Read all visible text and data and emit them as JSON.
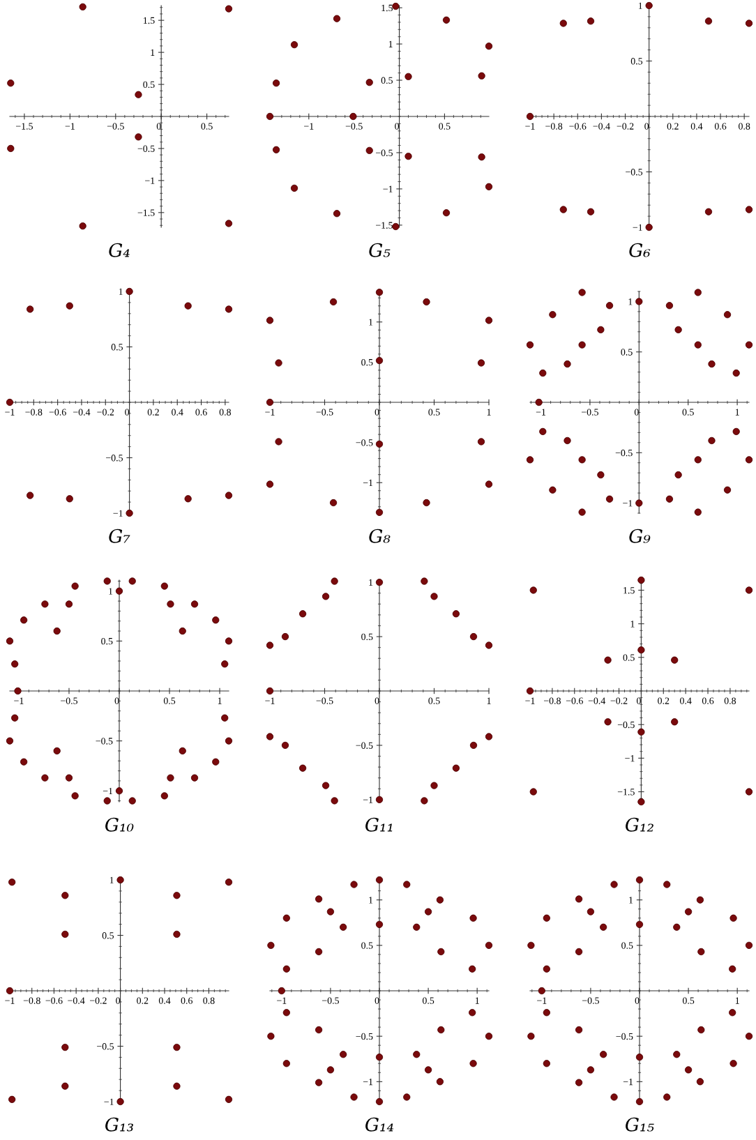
{
  "chart_data": [
    {
      "type": "scatter",
      "title": "G₄",
      "marker": "circle",
      "xlim": [
        -1.66,
        0.74
      ],
      "ylim": [
        -1.73,
        1.73
      ],
      "xticks": [
        -1.5,
        -1,
        -0.5,
        0,
        0.5
      ],
      "yticks": [
        -1.5,
        -1,
        -0.5,
        0.5,
        1,
        1.5
      ],
      "series": [
        {
          "color": "#7a0a0c",
          "x": [
            -0.86,
            0.74,
            -1.65,
            -0.25,
            -1.65,
            -0.25,
            -0.86,
            0.74
          ],
          "values": [
            1.71,
            1.68,
            0.52,
            0.34,
            -0.5,
            -0.32,
            -1.71,
            -1.67
          ]
        }
      ]
    },
    {
      "type": "scatter",
      "title": "G₅",
      "marker": "circle",
      "xlim": [
        -1.43,
        0.99
      ],
      "ylim": [
        -1.53,
        1.53
      ],
      "xticks": [
        -1,
        -0.5,
        0,
        0.5
      ],
      "yticks": [
        -1.5,
        -1,
        -0.5,
        0.5,
        1,
        1.5
      ],
      "series": [
        {
          "color": "#7a0a0c",
          "x": [
            -0.04,
            0.52,
            0.99,
            0.1,
            0.91,
            0.1,
            0.91,
            0.99,
            0.52,
            -0.04,
            -0.69,
            -1.16,
            -1.36,
            -0.33,
            -1.43,
            -0.51,
            -1.36,
            -0.33,
            -1.16,
            -0.69
          ],
          "values": [
            1.52,
            1.33,
            0.97,
            0.55,
            0.56,
            -0.55,
            -0.56,
            -0.97,
            -1.33,
            -1.52,
            1.35,
            0.99,
            0.46,
            0.47,
            0,
            0,
            -0.46,
            -0.47,
            -0.99,
            -1.34
          ]
        }
      ]
    },
    {
      "type": "scatter",
      "title": "G₆",
      "marker": "circle",
      "xlim": [
        -1,
        0.84
      ],
      "ylim": [
        -1,
        1
      ],
      "xticks": [
        -1,
        -0.8,
        -0.6,
        -0.4,
        -0.2,
        0,
        0.2,
        0.4,
        0.6,
        0.8
      ],
      "yticks": [
        -1,
        -0.5,
        0.5,
        1
      ],
      "series": [
        {
          "color": "#7a0a0c",
          "x": [
            -1,
            -0.72,
            -0.49,
            0,
            0.5,
            0.84,
            -0.72,
            -0.49,
            0,
            0.5,
            0.84
          ],
          "values": [
            0,
            0.84,
            0.86,
            1,
            0.86,
            0.84,
            -0.84,
            -0.86,
            -1,
            -0.86,
            -0.84
          ]
        }
      ]
    },
    {
      "type": "scatter",
      "title": "G₇",
      "marker": "circle",
      "xlim": [
        -1,
        0.83
      ],
      "ylim": [
        -1,
        1
      ],
      "xticks": [
        -1,
        -0.8,
        -0.6,
        -0.4,
        -0.2,
        0,
        0.2,
        0.4,
        0.6,
        0.8
      ],
      "yticks": [
        -1,
        -0.5,
        0.5,
        1
      ],
      "series": [
        {
          "color": "#7a0a0c",
          "x": [
            -1,
            -0.83,
            -0.5,
            0,
            0.49,
            0.83,
            -0.83,
            -0.5,
            0,
            0.49,
            0.83
          ],
          "values": [
            0,
            0.84,
            0.87,
            1,
            0.87,
            0.84,
            -0.84,
            -0.87,
            -1,
            -0.87,
            -0.84
          ]
        }
      ]
    },
    {
      "type": "scatter",
      "title": "G₈",
      "marker": "circle",
      "xlim": [
        -1,
        1
      ],
      "ylim": [
        -1.38,
        1.38
      ],
      "xticks": [
        -1,
        -0.5,
        0,
        0.5,
        1
      ],
      "yticks": [
        -1,
        -0.5,
        0.5,
        1
      ],
      "series": [
        {
          "color": "#7a0a0c",
          "x": [
            -1,
            -0.92,
            -1,
            -0.92,
            -1,
            -0.42,
            -0.42,
            0,
            0,
            0,
            0,
            0.43,
            0.43,
            0.93,
            0.93,
            1,
            1
          ],
          "values": [
            1.02,
            0.49,
            0,
            -0.49,
            -1.02,
            1.25,
            -1.25,
            1.37,
            0.52,
            -0.52,
            -1.37,
            1.25,
            -1.25,
            0.49,
            -0.49,
            1.02,
            -1.02
          ]
        }
      ]
    },
    {
      "type": "scatter",
      "title": "G₉",
      "marker": "circle",
      "xlim": [
        -1.11,
        1.12
      ],
      "ylim": [
        -1.1,
        1.1
      ],
      "xticks": [
        -1,
        -0.5,
        0,
        0.5,
        1
      ],
      "yticks": [
        -1,
        -0.5,
        0.5,
        1
      ],
      "series": [
        {
          "color": "#7a0a0c",
          "x": [
            -1.11,
            -0.98,
            -0.88,
            -0.58,
            -0.73,
            -0.58,
            -0.39,
            -0.3,
            0,
            0.31,
            0.4,
            0.6,
            0.6,
            0.74,
            0.9,
            0.99,
            1.12,
            -1.02,
            -1.11,
            -0.98,
            -0.88,
            -0.58,
            -0.73,
            -0.58,
            -0.39,
            -0.3,
            0,
            0.31,
            0.4,
            0.6,
            0.6,
            0.74,
            0.9,
            0.99,
            1.12
          ],
          "values": [
            0.57,
            0.29,
            0.87,
            1.09,
            0.38,
            0.57,
            0.72,
            0.96,
            1,
            0.96,
            0.72,
            1.09,
            0.57,
            0.38,
            0.87,
            0.29,
            0.57,
            0,
            -0.57,
            -0.29,
            -0.87,
            -1.09,
            -0.38,
            -0.57,
            -0.72,
            -0.96,
            -1,
            -0.96,
            -0.72,
            -1.09,
            -0.57,
            -0.38,
            -0.87,
            -0.29,
            -0.57
          ]
        }
      ]
    },
    {
      "type": "scatter",
      "title": "G₁₀",
      "marker": "circle",
      "xlim": [
        -1.09,
        1.09
      ],
      "ylim": [
        -1.11,
        1.11
      ],
      "xticks": [
        -1,
        -0.5,
        0,
        0.5,
        1
      ],
      "yticks": [
        -1,
        -0.5,
        0.5,
        1
      ],
      "series": [
        {
          "color": "#7a0a0c",
          "x": [
            -1.09,
            -1.04,
            -0.95,
            -0.74,
            -0.62,
            -0.5,
            -0.44,
            -0.12,
            0,
            0.13,
            0.45,
            0.51,
            0.63,
            0.75,
            0.96,
            1.05,
            1.09,
            -1.01,
            -1.09,
            -1.04,
            -0.95,
            -0.74,
            -0.62,
            -0.5,
            -0.44,
            -0.12,
            0,
            0.13,
            0.45,
            0.51,
            0.63,
            0.75,
            0.96,
            1.05,
            1.09
          ],
          "values": [
            0.5,
            0.27,
            0.71,
            0.87,
            0.6,
            0.87,
            1.05,
            1.1,
            1,
            1.1,
            1.05,
            0.87,
            0.6,
            0.87,
            0.71,
            0.27,
            0.5,
            0,
            -0.5,
            -0.27,
            -0.71,
            -0.87,
            -0.6,
            -0.87,
            -1.05,
            -1.1,
            -1,
            -1.1,
            -1.05,
            -0.87,
            -0.6,
            -0.87,
            -0.71,
            -0.27,
            -0.5
          ]
        }
      ]
    },
    {
      "type": "scatter",
      "title": "G₁₁",
      "marker": "circle",
      "xlim": [
        -1,
        1
      ],
      "ylim": [
        -1.02,
        1.02
      ],
      "xticks": [
        -1,
        -0.5,
        0,
        0.5,
        1
      ],
      "yticks": [
        -1,
        -0.5,
        0.5,
        1
      ],
      "series": [
        {
          "color": "#7a0a0c",
          "x": [
            -1,
            -0.86,
            -0.7,
            -0.49,
            -0.41,
            0,
            0.41,
            0.5,
            0.7,
            0.86,
            1,
            -1,
            -1,
            -0.86,
            -0.7,
            -0.49,
            -0.41,
            0,
            0.41,
            0.5,
            0.7,
            0.86,
            1
          ],
          "values": [
            0.42,
            0.5,
            0.71,
            0.87,
            1.01,
            1,
            1.01,
            0.87,
            0.71,
            0.5,
            0.42,
            0,
            -0.42,
            -0.5,
            -0.71,
            -0.87,
            -1.01,
            -1,
            -1.01,
            -0.87,
            -0.71,
            -0.5,
            -0.42
          ]
        }
      ]
    },
    {
      "type": "scatter",
      "title": "G₁₂",
      "marker": "circle",
      "xlim": [
        -1,
        0.97
      ],
      "ylim": [
        -1.65,
        1.65
      ],
      "xticks": [
        -1,
        -0.8,
        -0.6,
        -0.4,
        -0.2,
        0,
        0.2,
        0.4,
        0.6,
        0.8
      ],
      "yticks": [
        -1.5,
        -1,
        -0.5,
        0.5,
        1,
        1.5
      ],
      "series": [
        {
          "color": "#7a0a0c",
          "x": [
            -1,
            -0.97,
            -0.97,
            -0.3,
            -0.3,
            0,
            0,
            0,
            0,
            0.3,
            0.3,
            0.97,
            0.97
          ],
          "values": [
            0,
            1.5,
            -1.5,
            0.46,
            -0.46,
            1.65,
            0.61,
            -0.61,
            -1.65,
            0.46,
            -0.46,
            1.5,
            -1.5
          ]
        }
      ]
    },
    {
      "type": "scatter",
      "title": "G₁₃",
      "marker": "circle",
      "xlim": [
        -1,
        0.98
      ],
      "ylim": [
        -1,
        1
      ],
      "xticks": [
        -1,
        -0.8,
        -0.6,
        -0.4,
        -0.2,
        0,
        0.2,
        0.4,
        0.6,
        0.8
      ],
      "yticks": [
        -1,
        -0.5,
        0.5,
        1
      ],
      "series": [
        {
          "color": "#7a0a0c",
          "x": [
            -0.98,
            -1,
            -0.98,
            -0.5,
            -0.5,
            -0.5,
            -0.5,
            0,
            0,
            0.51,
            0.51,
            0.51,
            0.51,
            0.98,
            0.98
          ],
          "values": [
            0.98,
            0,
            -0.98,
            0.86,
            0.51,
            -0.51,
            -0.86,
            1,
            -1,
            0.86,
            0.51,
            -0.51,
            -0.86,
            0.98,
            -0.98
          ]
        }
      ]
    },
    {
      "type": "scatter",
      "title": "G₁₄",
      "marker": "circle",
      "xlim": [
        -1.12,
        1.12
      ],
      "ylim": [
        -1.22,
        1.22
      ],
      "xticks": [
        -1,
        -0.5,
        0,
        0.5,
        1
      ],
      "yticks": [
        -1,
        -0.5,
        0.5,
        1
      ],
      "series": [
        {
          "color": "#7a0a0c",
          "x": [
            -1.11,
            -0.95,
            -0.95,
            -0.62,
            -0.62,
            -0.5,
            -0.37,
            -0.26,
            0,
            0,
            0.28,
            0.38,
            0.5,
            0.62,
            0.63,
            0.96,
            0.95,
            1.12,
            -1,
            -1.11,
            -0.95,
            -0.95,
            -0.62,
            -0.62,
            -0.5,
            -0.37,
            -0.26,
            0,
            0,
            0.28,
            0.38,
            0.5,
            0.62,
            0.63,
            0.96,
            0.95,
            1.12
          ],
          "values": [
            0.5,
            0.24,
            0.8,
            1.01,
            0.43,
            0.87,
            0.7,
            1.17,
            1.22,
            0.73,
            1.17,
            0.7,
            0.87,
            1.0,
            0.43,
            0.8,
            0.24,
            0.5,
            0,
            -0.5,
            -0.24,
            -0.8,
            -1.01,
            -0.43,
            -0.87,
            -0.7,
            -1.17,
            -1.22,
            -0.73,
            -1.17,
            -0.7,
            -0.87,
            -1.0,
            -0.43,
            -0.8,
            -0.24,
            -0.5
          ]
        }
      ]
    },
    {
      "type": "scatter",
      "title": "G₁₅",
      "marker": "circle",
      "xlim": [
        -1.12,
        1.12
      ],
      "ylim": [
        -1.22,
        1.22
      ],
      "xticks": [
        -1,
        -0.5,
        0,
        0.5,
        1
      ],
      "yticks": [
        -1,
        -0.5,
        0.5,
        1
      ],
      "series": [
        {
          "color": "#7a0a0c",
          "x": [
            -1.11,
            -0.95,
            -0.95,
            -0.62,
            -0.62,
            -0.5,
            -0.37,
            -0.26,
            0,
            0,
            0.28,
            0.38,
            0.5,
            0.62,
            0.63,
            0.96,
            0.95,
            1.12,
            -1,
            -1.11,
            -0.95,
            -0.95,
            -0.62,
            -0.62,
            -0.5,
            -0.37,
            -0.26,
            0,
            0,
            0.28,
            0.38,
            0.5,
            0.62,
            0.63,
            0.96,
            0.95,
            1.12
          ],
          "values": [
            0.5,
            0.24,
            0.8,
            1.01,
            0.43,
            0.87,
            0.7,
            1.17,
            1.22,
            0.73,
            1.17,
            0.7,
            0.87,
            1.0,
            0.43,
            0.8,
            0.24,
            0.5,
            0,
            -0.5,
            -0.24,
            -0.8,
            -1.01,
            -0.43,
            -0.87,
            -0.7,
            -1.17,
            -1.22,
            -0.73,
            -1.17,
            -0.7,
            -0.87,
            -1.0,
            -0.43,
            -0.8,
            -0.24,
            -0.5
          ]
        }
      ]
    }
  ]
}
